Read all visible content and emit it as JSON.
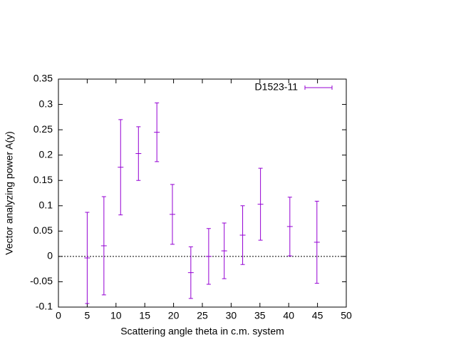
{
  "chart_data": {
    "type": "errorbar",
    "x_label": "Scattering angle theta in c.m. system",
    "y_label": "Vector analyzing power A(y)",
    "series": [
      {
        "name": "D1523-11",
        "color": "#9400d3",
        "x": [
          5,
          7.9,
          10.8,
          13.9,
          17.1,
          19.8,
          23.0,
          26.1,
          28.8,
          32.0,
          35.1,
          40.2,
          44.9
        ],
        "values": [
          -0.003,
          0.021,
          0.176,
          0.203,
          0.245,
          0.083,
          -0.032,
          0.0,
          0.011,
          0.042,
          0.103,
          0.059,
          0.028
        ],
        "errors": [
          0.09,
          0.097,
          0.094,
          0.053,
          0.058,
          0.059,
          0.051,
          0.055,
          0.055,
          0.058,
          0.071,
          0.058,
          0.081
        ]
      }
    ],
    "xlim": [
      0,
      50
    ],
    "xticks": [
      0,
      5,
      10,
      15,
      20,
      25,
      30,
      35,
      40,
      45,
      50
    ],
    "ylim": [
      -0.1,
      0.35
    ],
    "yticks": [
      -0.1,
      -0.05,
      0,
      0.05,
      0.1,
      0.15,
      0.2,
      0.25,
      0.3,
      0.35
    ],
    "zero_axis": true,
    "legend_position": "top-right"
  }
}
